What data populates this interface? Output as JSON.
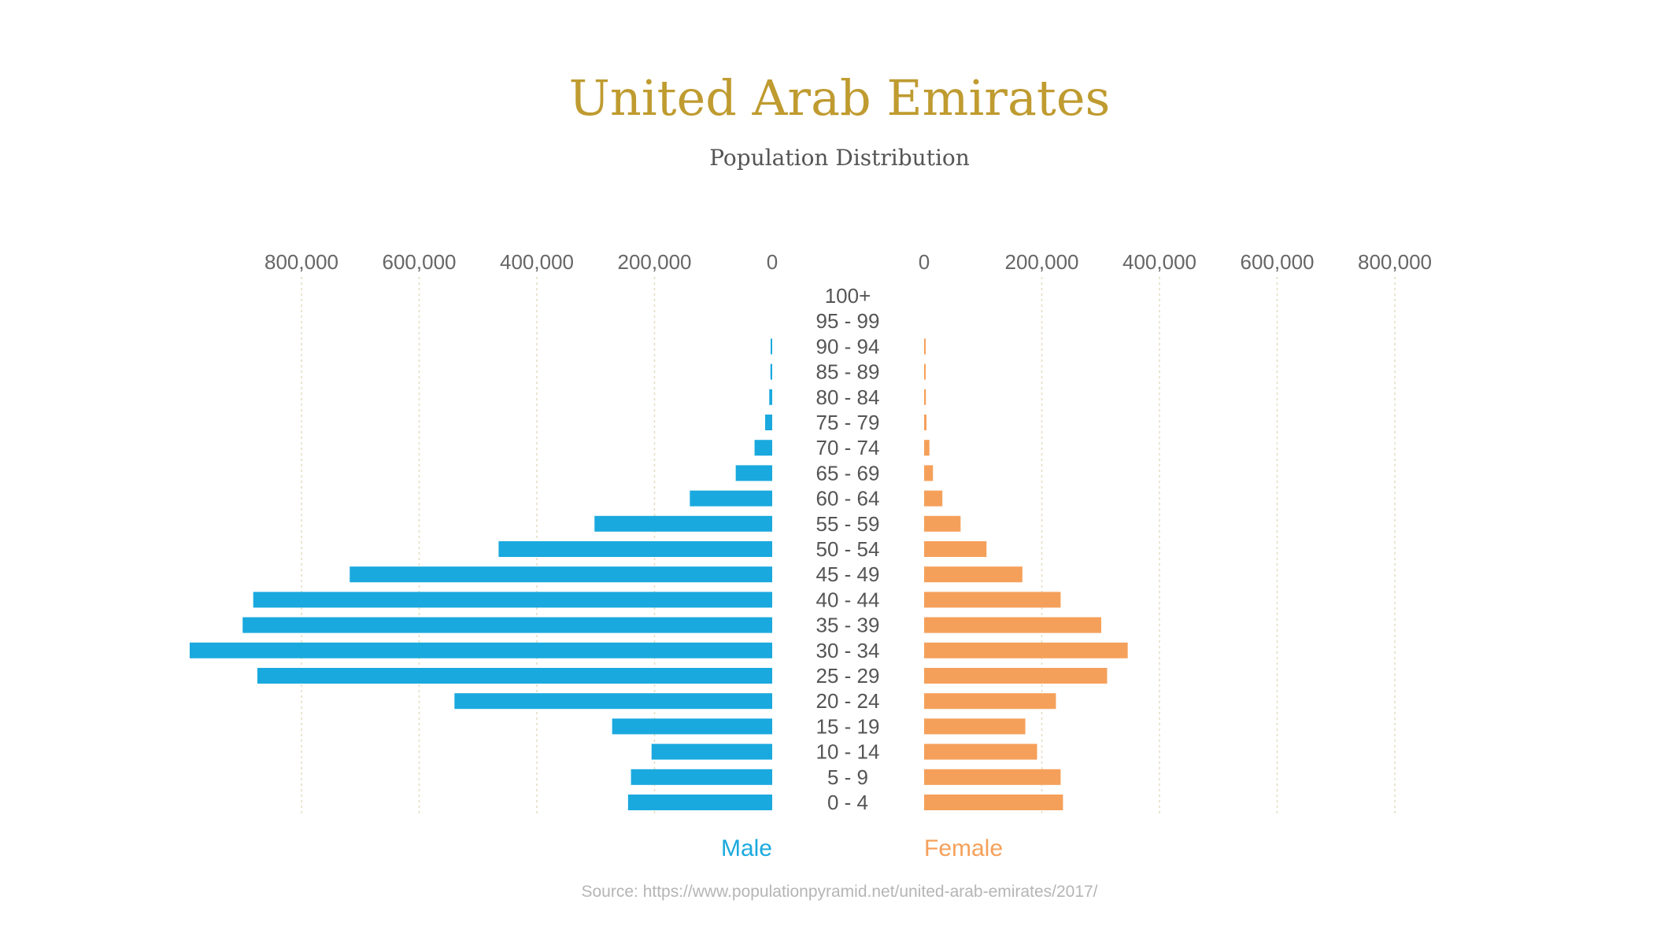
{
  "chart_data": {
    "type": "bar",
    "orientation": "horizontal",
    "title": "United Arab Emirates",
    "subtitle": "Population Distribution",
    "categories": [
      "0 - 4",
      "5 - 9",
      "10 - 14",
      "15 - 19",
      "20 - 24",
      "25 - 29",
      "30 - 34",
      "35 - 39",
      "40 - 44",
      "45 - 49",
      "50 - 54",
      "55 - 59",
      "60 - 64",
      "65 - 69",
      "70 - 74",
      "75 - 79",
      "80 - 84",
      "85 - 89",
      "90 - 94",
      "95 - 99",
      "100+"
    ],
    "series": [
      {
        "name": "Male",
        "color": "#1AA9DE",
        "values": [
          245000,
          240000,
          205000,
          272000,
          540000,
          875000,
          990000,
          900000,
          882000,
          718000,
          465000,
          302000,
          140000,
          62000,
          30000,
          12000,
          5000,
          3000,
          1000,
          0,
          0
        ]
      },
      {
        "name": "Female",
        "color": "#F5A05A",
        "values": [
          236000,
          232000,
          192000,
          172000,
          224000,
          311000,
          346000,
          301000,
          232000,
          167000,
          106000,
          62000,
          31000,
          15000,
          9000,
          4000,
          3000,
          2000,
          1000,
          0,
          0
        ]
      }
    ],
    "axis_ticks": [
      "800,000",
      "600,000",
      "400,000",
      "200,000",
      "0"
    ],
    "axis_tick_values": [
      800000,
      600000,
      400000,
      200000,
      0
    ],
    "xlim": [
      0,
      1000000
    ],
    "grid": true,
    "legend": "bottom"
  },
  "source": "Source: https://www.populationpyramid.net/united-arab-emirates/2017/"
}
